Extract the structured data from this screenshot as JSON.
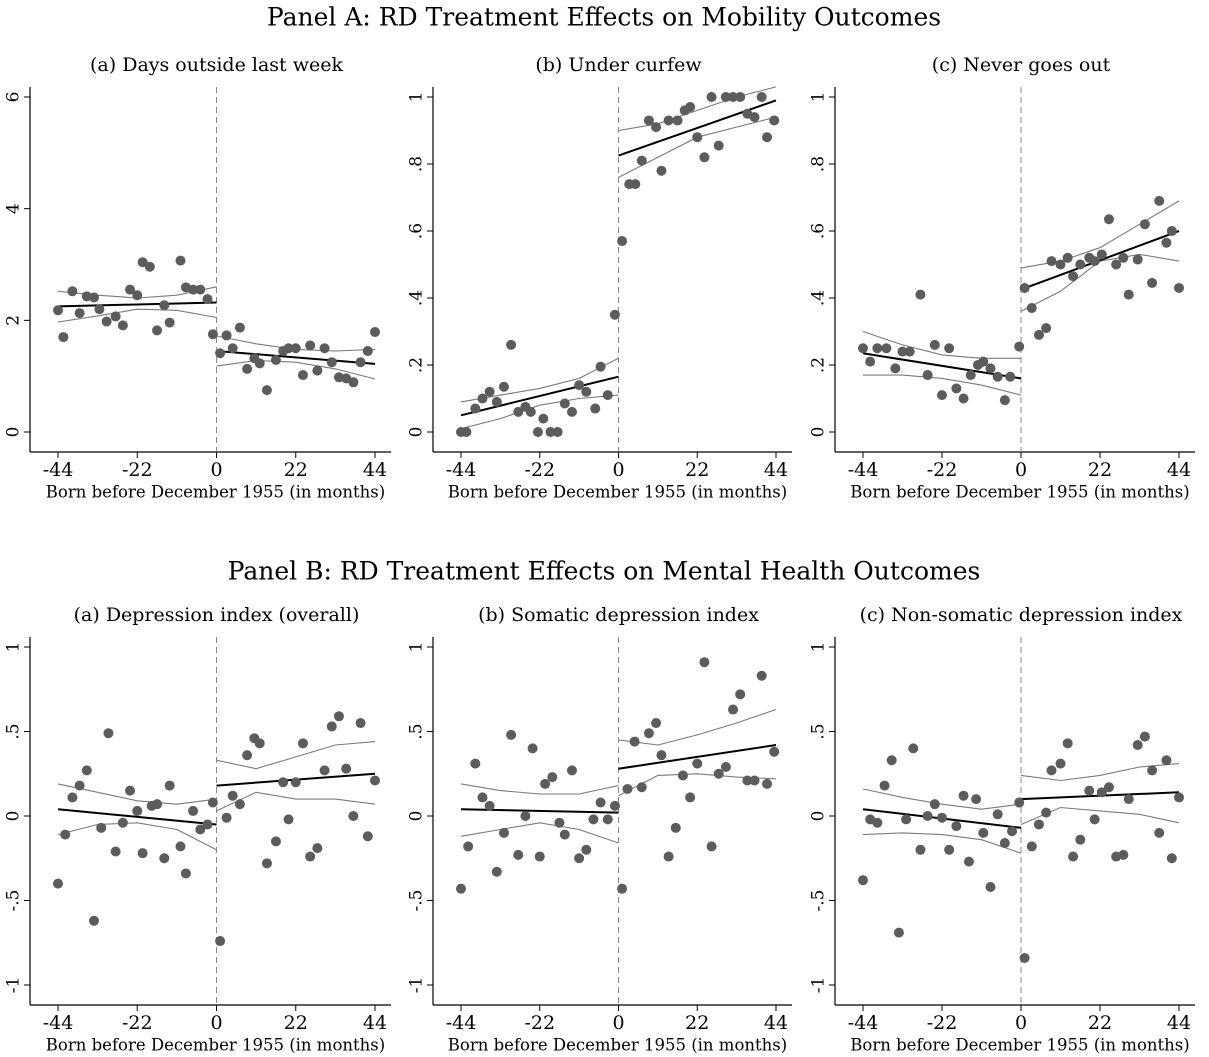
{
  "panels": [
    "Panel A: RD Treatment Effects on Mobility Outcomes",
    "Panel B: RD Treatment Effects on Mental Health Outcomes"
  ],
  "chart_data": [
    {
      "type": "scatter",
      "title": "(a) Days outside last week",
      "xlabel": "Born before December 1955 (in months)",
      "xlim": [
        -44,
        44
      ],
      "xticks": [
        -44,
        -22,
        0,
        22,
        44
      ],
      "ylim": [
        0,
        6
      ],
      "yticks": [
        0,
        2,
        4,
        6
      ],
      "cutoff": 0,
      "color": "#5c5c5c",
      "x": [
        -44,
        -42.5,
        -40,
        -38,
        -36,
        -34,
        -32.5,
        -30.5,
        -28,
        -26,
        -24,
        -22,
        -20.5,
        -18.5,
        -16.5,
        -14.5,
        -13,
        -10,
        -8.5,
        -6.5,
        -4.5,
        -2.5,
        -1,
        1,
        2.8,
        4.5,
        6.5,
        8.5,
        10.5,
        12,
        14,
        16.5,
        18.5,
        20,
        22,
        24,
        26,
        28,
        30,
        32,
        34,
        36,
        38,
        40,
        42,
        44
      ],
      "values": [
        2.18,
        1.7,
        2.52,
        2.13,
        2.43,
        2.41,
        2.2,
        1.98,
        2.07,
        1.91,
        2.55,
        2.45,
        3.04,
        2.96,
        1.82,
        2.27,
        1.96,
        3.07,
        2.59,
        2.55,
        2.55,
        2.38,
        1.75,
        1.41,
        1.73,
        1.5,
        1.87,
        1.13,
        1.32,
        1.23,
        0.75,
        1.29,
        1.45,
        1.5,
        1.5,
        1.02,
        1.55,
        1.1,
        1.5,
        1.25,
        0.98,
        0.96,
        0.89,
        1.25,
        1.45,
        1.79
      ],
      "fit": [
        {
          "x": [
            -44,
            0
          ],
          "values": [
            2.25,
            2.32
          ],
          "color": "#000000"
        },
        {
          "x": [
            0,
            44
          ],
          "values": [
            1.45,
            1.22
          ],
          "color": "#000000"
        }
      ],
      "ci": [
        {
          "x": [
            -44,
            -33,
            -22,
            -11,
            0
          ],
          "upper": [
            2.52,
            2.45,
            2.4,
            2.45,
            2.6
          ],
          "lower": [
            1.97,
            2.08,
            2.2,
            2.18,
            2.05
          ],
          "color": "#7a7a7a"
        },
        {
          "x": [
            0,
            11,
            22,
            33,
            44
          ],
          "upper": [
            1.72,
            1.58,
            1.48,
            1.45,
            1.48
          ],
          "lower": [
            1.18,
            1.28,
            1.25,
            1.13,
            0.95
          ],
          "color": "#7a7a7a"
        }
      ]
    },
    {
      "type": "scatter",
      "title": "(b) Under curfew",
      "xlabel": "Born before December 1955 (in months)",
      "xlim": [
        -44,
        44
      ],
      "xticks": [
        -44,
        -22,
        0,
        22,
        44
      ],
      "ylim": [
        0,
        1
      ],
      "yticks": [
        0,
        {
          "value": 0.2,
          "label": ".2"
        },
        {
          "value": 0.4,
          "label": ".4"
        },
        {
          "value": 0.6,
          "label": ".6"
        },
        {
          "value": 0.8,
          "label": ".8"
        },
        1
      ],
      "cutoff": 0,
      "color": "#5c5c5c",
      "x": [
        -44,
        -42.5,
        -40,
        -38,
        -36,
        -34,
        -32,
        -30,
        -28,
        -26,
        -24.5,
        -22.5,
        -21,
        -19,
        -17,
        -15,
        -13,
        -11,
        -9,
        -6.5,
        -5,
        -3,
        -1,
        1,
        3,
        4.7,
        6.5,
        8.5,
        10.5,
        12,
        14,
        16.5,
        18.5,
        20,
        22,
        24,
        26,
        28,
        30,
        32,
        34,
        36,
        38,
        40,
        41.5,
        43.5
      ],
      "values": [
        0,
        0,
        0.07,
        0.1,
        0.12,
        0.09,
        0.135,
        0.26,
        0.06,
        0.075,
        0.06,
        0,
        0.04,
        0,
        0,
        0.085,
        0.06,
        0.14,
        0.12,
        0.07,
        0.195,
        0.11,
        0.35,
        0.57,
        0.74,
        0.74,
        0.81,
        0.93,
        0.91,
        0.78,
        0.93,
        0.93,
        0.96,
        0.97,
        0.88,
        0.82,
        1,
        0.855,
        1,
        1,
        1,
        0.95,
        0.94,
        1,
        0.88,
        0.93
      ],
      "fit": [
        {
          "x": [
            -44,
            0
          ],
          "values": [
            0.05,
            0.165
          ],
          "color": "#000000"
        },
        {
          "x": [
            0,
            44
          ],
          "values": [
            0.825,
            0.99
          ],
          "color": "#000000"
        }
      ],
      "ci": [
        {
          "x": [
            -44,
            -33,
            -22,
            -11,
            0
          ],
          "upper": [
            0.09,
            0.11,
            0.13,
            0.16,
            0.22
          ],
          "lower": [
            0.01,
            0.04,
            0.08,
            0.1,
            0.11
          ],
          "color": "#7a7a7a"
        },
        {
          "x": [
            0,
            11,
            22,
            33,
            44
          ],
          "upper": [
            0.9,
            0.92,
            0.96,
            1,
            1.03
          ],
          "lower": [
            0.76,
            0.82,
            0.88,
            0.91,
            0.94
          ],
          "color": "#7a7a7a"
        }
      ]
    },
    {
      "type": "scatter",
      "title": "(c) Never goes out",
      "xlabel": "Born before December 1955 (in months)",
      "xlim": [
        -44,
        44
      ],
      "xticks": [
        -44,
        -22,
        0,
        22,
        44
      ],
      "ylim": [
        0,
        1
      ],
      "yticks": [
        0,
        {
          "value": 0.2,
          "label": ".2"
        },
        {
          "value": 0.4,
          "label": ".4"
        },
        {
          "value": 0.6,
          "label": ".6"
        },
        {
          "value": 0.8,
          "label": ".8"
        },
        1
      ],
      "cutoff": 0,
      "color": "#5c5c5c",
      "x": [
        -44,
        -42,
        -40,
        -37.5,
        -35,
        -33,
        -31,
        -28,
        -26,
        -24,
        -22,
        -20,
        -18,
        -16,
        -14,
        -12,
        -10.5,
        -8.5,
        -6.5,
        -4.5,
        -3,
        -0.5,
        1,
        3,
        5,
        7,
        8.5,
        11,
        13,
        14.5,
        16.5,
        19,
        20.5,
        22.5,
        24.5,
        26.5,
        28.5,
        30,
        32.5,
        34.5,
        36.5,
        38.5,
        40.5,
        42,
        44
      ],
      "values": [
        0.25,
        0.21,
        0.25,
        0.25,
        0.19,
        0.24,
        0.24,
        0.41,
        0.17,
        0.26,
        0.11,
        0.25,
        0.13,
        0.1,
        0.17,
        0.2,
        0.21,
        0.19,
        0.165,
        0.095,
        0.165,
        0.255,
        0.43,
        0.37,
        0.29,
        0.31,
        0.51,
        0.5,
        0.52,
        0.465,
        0.5,
        0.52,
        0.51,
        0.53,
        0.635,
        0.5,
        0.52,
        0.41,
        0.515,
        0.62,
        0.445,
        0.69,
        0.565,
        0.6,
        0.43
      ],
      "fit": [
        {
          "x": [
            -44,
            0
          ],
          "values": [
            0.235,
            0.16
          ],
          "color": "#000000"
        },
        {
          "x": [
            0,
            44
          ],
          "values": [
            0.425,
            0.6
          ],
          "color": "#000000"
        }
      ],
      "ci": [
        {
          "x": [
            -44,
            -33,
            -22,
            -11,
            0
          ],
          "upper": [
            0.3,
            0.26,
            0.23,
            0.22,
            0.22
          ],
          "lower": [
            0.17,
            0.17,
            0.16,
            0.14,
            0.11
          ],
          "color": "#7a7a7a"
        },
        {
          "x": [
            0,
            11,
            22,
            33,
            44
          ],
          "upper": [
            0.49,
            0.51,
            0.55,
            0.62,
            0.69
          ],
          "lower": [
            0.36,
            0.42,
            0.51,
            0.53,
            0.51
          ],
          "color": "#7a7a7a"
        }
      ]
    },
    {
      "type": "scatter",
      "title": "(a) Depression index (overall)",
      "xlabel": "Born before December 1955 (in months)",
      "xlim": [
        -44,
        44
      ],
      "xticks": [
        -44,
        -22,
        0,
        22,
        44
      ],
      "ylim": [
        -1,
        1
      ],
      "yticks": [
        -1,
        {
          "value": -0.5,
          "label": "-.5"
        },
        0,
        {
          "value": 0.5,
          "label": ".5"
        },
        1
      ],
      "cutoff": 0,
      "color": "#5c5c5c",
      "x": [
        -44,
        -42,
        -40,
        -38,
        -36,
        -34,
        -32,
        -30,
        -28,
        -26,
        -24,
        -22,
        -20.5,
        -18,
        -16.5,
        -14.5,
        -13,
        -10,
        -8.5,
        -6.5,
        -4.5,
        -2.5,
        -1,
        1,
        2.8,
        4.5,
        6.5,
        8.5,
        10.5,
        12,
        14,
        16.5,
        18.5,
        20,
        22,
        24,
        26,
        28,
        30,
        32,
        34,
        36,
        38,
        40,
        42,
        44
      ],
      "values": [
        -0.4,
        -0.11,
        0.11,
        0.18,
        0.27,
        -0.62,
        -0.07,
        0.49,
        -0.21,
        -0.04,
        0.15,
        0.03,
        -0.22,
        0.06,
        0.07,
        -0.25,
        0.18,
        -0.18,
        -0.34,
        0.03,
        -0.08,
        -0.05,
        0.08,
        -0.74,
        -0.01,
        0.12,
        0.07,
        0.36,
        0.46,
        0.43,
        -0.28,
        -0.15,
        0.2,
        -0.02,
        0.2,
        0.43,
        -0.24,
        -0.19,
        0.27,
        0.53,
        0.59,
        0.28,
        0,
        0.55,
        -0.12,
        0.21
      ],
      "fit": [
        {
          "x": [
            -44,
            0
          ],
          "values": [
            0.04,
            -0.05
          ],
          "color": "#000000"
        },
        {
          "x": [
            0,
            44
          ],
          "values": [
            0.18,
            0.25
          ],
          "color": "#000000"
        }
      ],
      "ci": [
        {
          "x": [
            -44,
            -33,
            -22,
            -11,
            0
          ],
          "upper": [
            0.19,
            0.14,
            0.09,
            0.07,
            0.1
          ],
          "lower": [
            -0.11,
            -0.05,
            -0.04,
            -0.08,
            -0.2
          ],
          "color": "#7a7a7a"
        },
        {
          "x": [
            0,
            11,
            22,
            33,
            44
          ],
          "upper": [
            0.33,
            0.28,
            0.35,
            0.42,
            0.44
          ],
          "lower": [
            0.03,
            0.14,
            0.1,
            0.1,
            0.07
          ],
          "color": "#7a7a7a"
        }
      ]
    },
    {
      "type": "scatter",
      "title": "(b) Somatic depression index",
      "xlabel": "Born before December 1955 (in months)",
      "xlim": [
        -44,
        44
      ],
      "xticks": [
        -44,
        -22,
        0,
        22,
        44
      ],
      "ylim": [
        -1,
        1
      ],
      "yticks": [
        -1,
        {
          "value": -0.5,
          "label": "-.5"
        },
        0,
        {
          "value": 0.5,
          "label": ".5"
        },
        1
      ],
      "cutoff": 0,
      "color": "#5c5c5c",
      "x": [
        -44,
        -42,
        -40,
        -38,
        -36,
        -34,
        -32,
        -30,
        -28,
        -26,
        -24,
        -22,
        -20.5,
        -18.5,
        -16.5,
        -15,
        -13,
        -11,
        -9,
        -7,
        -5,
        -3,
        -1,
        1,
        2.5,
        4.5,
        6.5,
        8.5,
        10.5,
        12,
        14,
        16,
        18,
        20,
        22,
        24,
        26,
        28,
        30,
        32,
        34,
        36,
        38,
        40,
        41.5,
        43.5
      ],
      "values": [
        -0.43,
        -0.18,
        0.31,
        0.11,
        0.06,
        -0.33,
        -0.1,
        0.48,
        -0.23,
        0,
        0.4,
        -0.24,
        0.19,
        0.23,
        -0.04,
        -0.11,
        0.27,
        -0.25,
        -0.2,
        -0.02,
        0.08,
        -0.02,
        0.06,
        -0.43,
        0.16,
        0.44,
        0.17,
        0.49,
        0.55,
        0.36,
        -0.24,
        -0.07,
        0.24,
        0.11,
        0.31,
        0.91,
        -0.18,
        0.25,
        0.29,
        0.63,
        0.72,
        0.21,
        0.21,
        0.83,
        0.19,
        0.38
      ],
      "fit": [
        {
          "x": [
            -44,
            0
          ],
          "values": [
            0.04,
            0.02
          ],
          "color": "#000000"
        },
        {
          "x": [
            0,
            44
          ],
          "values": [
            0.28,
            0.42
          ],
          "color": "#000000"
        }
      ],
      "ci": [
        {
          "x": [
            -44,
            -33,
            -22,
            -11,
            0
          ],
          "upper": [
            0.19,
            0.15,
            0.13,
            0.13,
            0.18
          ],
          "lower": [
            -0.12,
            -0.08,
            -0.04,
            -0.08,
            -0.16
          ],
          "color": "#7a7a7a"
        },
        {
          "x": [
            0,
            11,
            22,
            33,
            44
          ],
          "upper": [
            0.45,
            0.42,
            0.48,
            0.55,
            0.63
          ],
          "lower": [
            0.12,
            0.24,
            0.25,
            0.23,
            0.22
          ],
          "color": "#7a7a7a"
        }
      ]
    },
    {
      "type": "scatter",
      "title": "(c) Non-somatic depression index",
      "xlabel": "Born before December 1955 (in months)",
      "xlim": [
        -44,
        44
      ],
      "xticks": [
        -44,
        -22,
        0,
        22,
        44
      ],
      "ylim": [
        -1,
        1
      ],
      "yticks": [
        -1,
        {
          "value": -0.5,
          "label": "-.5"
        },
        0,
        {
          "value": 0.5,
          "label": ".5"
        },
        1
      ],
      "cutoff": 0,
      "color": "#5c5c5c",
      "x": [
        -44,
        -42,
        -40,
        -38,
        -36,
        -34,
        -32,
        -30,
        -28,
        -26,
        -24,
        -22,
        -20,
        -18,
        -16,
        -14.5,
        -12.5,
        -10.5,
        -8.5,
        -6.5,
        -4.5,
        -2.5,
        -0.5,
        1,
        3,
        5,
        7,
        8.5,
        11,
        13,
        14.5,
        16.5,
        19,
        20.5,
        22.5,
        24.5,
        26.5,
        28.5,
        30,
        32.5,
        34.5,
        36.5,
        38.5,
        40.5,
        42,
        44
      ],
      "values": [
        -0.38,
        -0.02,
        -0.04,
        0.18,
        0.33,
        -0.69,
        -0.02,
        0.4,
        -0.2,
        0,
        0.07,
        -0.01,
        -0.2,
        -0.06,
        0.12,
        -0.27,
        0.1,
        -0.1,
        -0.42,
        0.01,
        -0.16,
        -0.09,
        0.08,
        -0.84,
        -0.18,
        -0.05,
        0.02,
        0.27,
        0.31,
        0.43,
        -0.24,
        -0.14,
        0.15,
        -0.02,
        0.14,
        0.17,
        -0.24,
        -0.23,
        0.1,
        0.42,
        0.47,
        0.27,
        -0.1,
        0.33,
        -0.25,
        0.11
      ],
      "fit": [
        {
          "x": [
            -44,
            0
          ],
          "values": [
            0.04,
            -0.07
          ],
          "color": "#000000"
        },
        {
          "x": [
            0,
            44
          ],
          "values": [
            0.1,
            0.14
          ],
          "color": "#000000"
        }
      ],
      "ci": [
        {
          "x": [
            -44,
            -33,
            -22,
            -11,
            0
          ],
          "upper": [
            0.16,
            0.11,
            0.07,
            0.04,
            0.07
          ],
          "lower": [
            -0.11,
            -0.1,
            -0.11,
            -0.14,
            -0.22
          ],
          "color": "#7a7a7a"
        },
        {
          "x": [
            0,
            11,
            22,
            33,
            44
          ],
          "upper": [
            0.24,
            0.21,
            0.24,
            0.29,
            0.31
          ],
          "lower": [
            -0.05,
            0.05,
            0.03,
            0.01,
            -0.04
          ],
          "color": "#7a7a7a"
        }
      ]
    }
  ]
}
